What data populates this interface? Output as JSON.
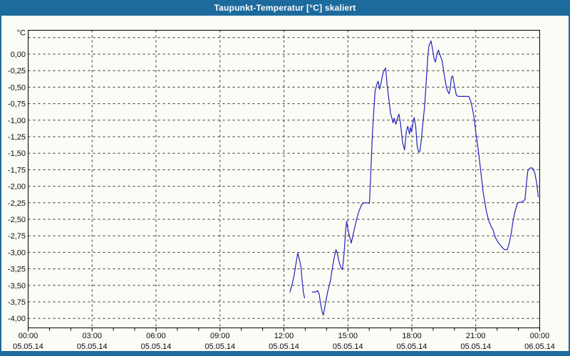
{
  "window": {
    "title": "Taupunkt-Temperatur [°C] skaliert"
  },
  "colors": {
    "titlebar_bg": "#1d6a9d",
    "title_text": "#ffffff",
    "frame": "#1d6a9d",
    "plot_bg": "#fcfcf6",
    "plot_border": "#000000",
    "grid": "#2e2e2e",
    "label": "#0a0a14",
    "line": "#2222c0"
  },
  "chart_data": {
    "type": "line",
    "title": "Taupunkt-Temperatur [°C] skaliert",
    "unit_label": "°C",
    "legend": "none",
    "grid_on": true,
    "x_axis": {
      "range_hours": [
        0,
        24
      ],
      "minor_tick_every_hours": 1,
      "major_ticks": [
        {
          "h": 0,
          "time": "00:00",
          "date": "05.05.14"
        },
        {
          "h": 3,
          "time": "03:00",
          "date": "05.05.14"
        },
        {
          "h": 6,
          "time": "06:00",
          "date": "05.05.14"
        },
        {
          "h": 9,
          "time": "09:00",
          "date": "05.05.14"
        },
        {
          "h": 12,
          "time": "12:00",
          "date": "05.05.14"
        },
        {
          "h": 15,
          "time": "15:00",
          "date": "05.05.14"
        },
        {
          "h": 18,
          "time": "18:00",
          "date": "05.05.14"
        },
        {
          "h": 21,
          "time": "21:00",
          "date": "05.05.14"
        },
        {
          "h": 24,
          "time": "00:00",
          "date": "06.05.14"
        }
      ],
      "v_gridline_hours": [
        3,
        6,
        9,
        12,
        15,
        18,
        21
      ]
    },
    "y_axis": {
      "ylim": [
        -4.14,
        0.36
      ],
      "tick_step": 0.25,
      "top_unlabeled_gridline_value": 0.25,
      "ticks": [
        {
          "v": 0.0,
          "label": "0,00"
        },
        {
          "v": -0.25,
          "label": "-0,25"
        },
        {
          "v": -0.5,
          "label": "-0,50"
        },
        {
          "v": -0.75,
          "label": "-0,75"
        },
        {
          "v": -1.0,
          "label": "-1,00"
        },
        {
          "v": -1.25,
          "label": "-1,25"
        },
        {
          "v": -1.5,
          "label": "-1,50"
        },
        {
          "v": -1.75,
          "label": "-1,75"
        },
        {
          "v": -2.0,
          "label": "-2,00"
        },
        {
          "v": -2.25,
          "label": "-2,25"
        },
        {
          "v": -2.5,
          "label": "-2,50"
        },
        {
          "v": -2.75,
          "label": "-2,75"
        },
        {
          "v": -3.0,
          "label": "-3,00"
        },
        {
          "v": -3.25,
          "label": "-3,25"
        },
        {
          "v": -3.5,
          "label": "-3,50"
        },
        {
          "v": -3.75,
          "label": "-3,75"
        },
        {
          "v": -4.0,
          "label": "-4,00"
        }
      ]
    },
    "series": [
      {
        "name": "Taupunkt-Temperatur",
        "color": "#2222c0",
        "segments": [
          [
            [
              12.28,
              -3.6
            ],
            [
              12.37,
              -3.5
            ],
            [
              12.47,
              -3.36
            ],
            [
              12.57,
              -3.16
            ],
            [
              12.65,
              -3.01
            ],
            [
              12.72,
              -3.1
            ],
            [
              12.8,
              -3.22
            ],
            [
              12.86,
              -3.45
            ],
            [
              12.92,
              -3.62
            ],
            [
              12.97,
              -3.69
            ]
          ],
          [
            [
              13.33,
              -3.6
            ],
            [
              13.47,
              -3.6
            ],
            [
              13.58,
              -3.58
            ],
            [
              13.65,
              -3.63
            ],
            [
              13.72,
              -3.78
            ],
            [
              13.79,
              -3.9
            ],
            [
              13.85,
              -3.95
            ],
            [
              13.93,
              -3.81
            ],
            [
              14.05,
              -3.6
            ],
            [
              14.17,
              -3.45
            ],
            [
              14.27,
              -3.24
            ],
            [
              14.36,
              -3.08
            ],
            [
              14.44,
              -2.96
            ],
            [
              14.51,
              -3.02
            ],
            [
              14.59,
              -3.15
            ],
            [
              14.67,
              -3.23
            ],
            [
              14.74,
              -3.26
            ],
            [
              14.82,
              -3.02
            ],
            [
              14.89,
              -2.68
            ],
            [
              14.94,
              -2.53
            ],
            [
              15.01,
              -2.66
            ],
            [
              15.08,
              -2.76
            ],
            [
              15.16,
              -2.86
            ],
            [
              15.24,
              -2.74
            ],
            [
              15.34,
              -2.6
            ],
            [
              15.44,
              -2.46
            ],
            [
              15.54,
              -2.36
            ],
            [
              15.66,
              -2.27
            ],
            [
              15.77,
              -2.25
            ],
            [
              15.91,
              -2.25
            ],
            [
              16.01,
              -2.26
            ],
            [
              16.08,
              -1.75
            ],
            [
              16.15,
              -1.2
            ],
            [
              16.22,
              -0.85
            ],
            [
              16.28,
              -0.55
            ],
            [
              16.37,
              -0.45
            ],
            [
              16.42,
              -0.41
            ],
            [
              16.49,
              -0.53
            ],
            [
              16.55,
              -0.45
            ],
            [
              16.64,
              -0.3
            ],
            [
              16.72,
              -0.24
            ],
            [
              16.77,
              -0.21
            ],
            [
              16.85,
              -0.5
            ],
            [
              16.93,
              -0.7
            ],
            [
              17.0,
              -0.89
            ],
            [
              17.12,
              -1.04
            ],
            [
              17.17,
              -0.97
            ],
            [
              17.25,
              -1.06
            ],
            [
              17.34,
              -0.95
            ],
            [
              17.4,
              -0.91
            ],
            [
              17.47,
              -1.05
            ],
            [
              17.57,
              -1.34
            ],
            [
              17.66,
              -1.45
            ],
            [
              17.74,
              -1.18
            ],
            [
              17.81,
              -1.09
            ],
            [
              17.89,
              -1.21
            ],
            [
              17.94,
              -1.11
            ],
            [
              17.99,
              -1.18
            ],
            [
              18.06,
              -1.03
            ],
            [
              18.11,
              -0.96
            ],
            [
              18.18,
              -1.09
            ],
            [
              18.25,
              -1.39
            ],
            [
              18.31,
              -1.48
            ],
            [
              18.37,
              -1.48
            ],
            [
              18.43,
              -1.34
            ],
            [
              18.53,
              -1.01
            ],
            [
              18.61,
              -0.76
            ],
            [
              18.68,
              -0.4
            ],
            [
              18.75,
              -0.05
            ],
            [
              18.8,
              0.12
            ],
            [
              18.9,
              0.2
            ],
            [
              18.97,
              0.08
            ],
            [
              19.05,
              -0.08
            ],
            [
              19.11,
              -0.12
            ],
            [
              19.19,
              0.02
            ],
            [
              19.25,
              0.06
            ],
            [
              19.33,
              -0.02
            ],
            [
              19.42,
              -0.1
            ],
            [
              19.5,
              -0.27
            ],
            [
              19.58,
              -0.43
            ],
            [
              19.66,
              -0.55
            ],
            [
              19.75,
              -0.6
            ],
            [
              19.8,
              -0.51
            ],
            [
              19.86,
              -0.35
            ],
            [
              19.92,
              -0.33
            ],
            [
              20.0,
              -0.48
            ],
            [
              20.09,
              -0.62
            ],
            [
              20.17,
              -0.64
            ],
            [
              20.41,
              -0.64
            ],
            [
              20.67,
              -0.64
            ],
            [
              20.76,
              -0.71
            ],
            [
              20.84,
              -0.82
            ],
            [
              20.93,
              -0.98
            ],
            [
              21.01,
              -1.21
            ],
            [
              21.08,
              -1.36
            ],
            [
              21.14,
              -1.51
            ],
            [
              21.21,
              -1.7
            ],
            [
              21.28,
              -1.9
            ],
            [
              21.35,
              -2.1
            ],
            [
              21.43,
              -2.25
            ],
            [
              21.51,
              -2.4
            ],
            [
              21.61,
              -2.52
            ],
            [
              21.71,
              -2.6
            ],
            [
              21.81,
              -2.66
            ],
            [
              21.91,
              -2.77
            ],
            [
              22.03,
              -2.84
            ],
            [
              22.15,
              -2.89
            ],
            [
              22.25,
              -2.93
            ],
            [
              22.35,
              -2.96
            ],
            [
              22.48,
              -2.96
            ],
            [
              22.58,
              -2.85
            ],
            [
              22.67,
              -2.7
            ],
            [
              22.75,
              -2.52
            ],
            [
              22.85,
              -2.37
            ],
            [
              22.95,
              -2.26
            ],
            [
              23.05,
              -2.24
            ],
            [
              23.15,
              -2.24
            ],
            [
              23.24,
              -2.22
            ],
            [
              23.31,
              -2.2
            ],
            [
              23.37,
              -1.97
            ],
            [
              23.44,
              -1.77
            ],
            [
              23.52,
              -1.73
            ],
            [
              23.62,
              -1.72
            ],
            [
              23.7,
              -1.74
            ],
            [
              23.77,
              -1.8
            ],
            [
              23.84,
              -1.92
            ],
            [
              23.91,
              -2.08
            ],
            [
              23.93,
              -2.16
            ]
          ]
        ]
      }
    ]
  }
}
